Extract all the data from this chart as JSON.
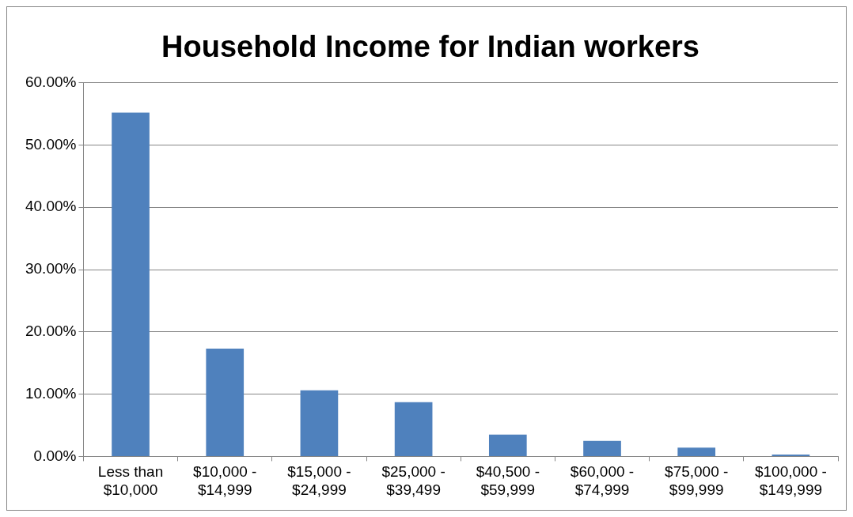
{
  "chart_data": {
    "type": "bar",
    "title": "Household Income for Indian workers",
    "categories": [
      "Less than $10,000",
      "$10,000 - $14,999",
      "$15,000 - $24,999",
      "$25,000 - $39,499",
      "$40,500 - $59,999",
      "$60,000 - $74,999",
      "$75,000 - $99,999",
      "$100,000 - $149,999"
    ],
    "values": [
      55.2,
      17.3,
      10.6,
      8.7,
      3.5,
      2.5,
      1.4,
      0.3
    ],
    "color": "#4f81bd",
    "ylim": [
      0,
      60
    ],
    "yticks": [
      {
        "value": 0,
        "label": "0.00%"
      },
      {
        "value": 10,
        "label": "10.00%"
      },
      {
        "value": 20,
        "label": "20.00%"
      },
      {
        "value": 30,
        "label": "30.00%"
      },
      {
        "value": 40,
        "label": "40.00%"
      },
      {
        "value": 50,
        "label": "50.00%"
      },
      {
        "value": 60,
        "label": "60.00%"
      }
    ],
    "grid": "y",
    "legend": false
  }
}
